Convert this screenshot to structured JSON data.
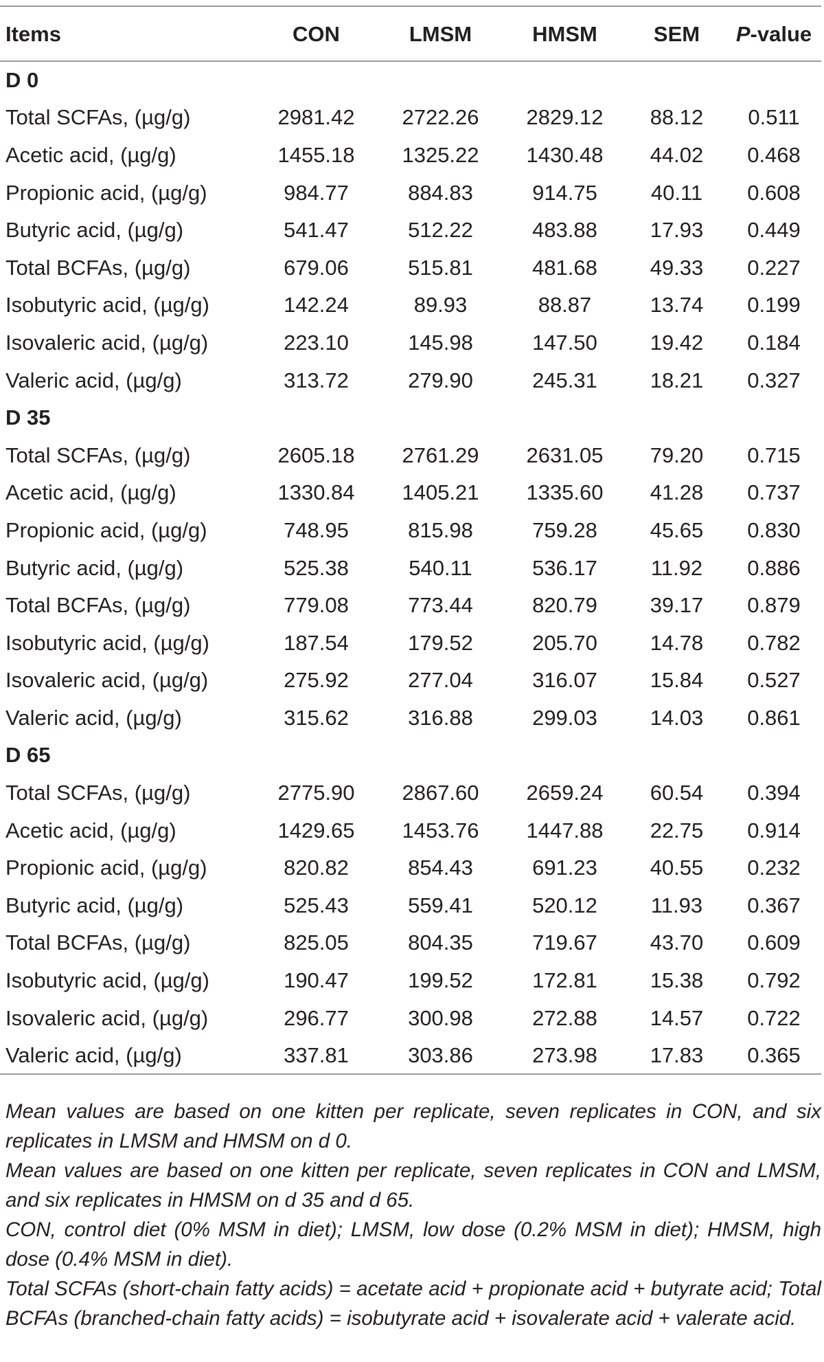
{
  "table": {
    "headers": {
      "items": "Items",
      "con": "CON",
      "lmsm": "LMSM",
      "hmsm": "HMSM",
      "sem": "SEM",
      "p_letter": "P",
      "p_suffix": "-value"
    },
    "groups": [
      {
        "label": "D 0",
        "rows": [
          {
            "item": "Total SCFAs, (µg/g)",
            "con": "2981.42",
            "lmsm": "2722.26",
            "hmsm": "2829.12",
            "sem": "88.12",
            "p": "0.511"
          },
          {
            "item": "Acetic acid, (µg/g)",
            "con": "1455.18",
            "lmsm": "1325.22",
            "hmsm": "1430.48",
            "sem": "44.02",
            "p": "0.468"
          },
          {
            "item": "Propionic acid, (µg/g)",
            "con": "984.77",
            "lmsm": "884.83",
            "hmsm": "914.75",
            "sem": "40.11",
            "p": "0.608"
          },
          {
            "item": "Butyric acid, (µg/g)",
            "con": "541.47",
            "lmsm": "512.22",
            "hmsm": "483.88",
            "sem": "17.93",
            "p": "0.449"
          },
          {
            "item": "Total BCFAs, (µg/g)",
            "con": "679.06",
            "lmsm": "515.81",
            "hmsm": "481.68",
            "sem": "49.33",
            "p": "0.227"
          },
          {
            "item": "Isobutyric acid, (µg/g)",
            "con": "142.24",
            "lmsm": "89.93",
            "hmsm": "88.87",
            "sem": "13.74",
            "p": "0.199"
          },
          {
            "item": "Isovaleric acid, (µg/g)",
            "con": "223.10",
            "lmsm": "145.98",
            "hmsm": "147.50",
            "sem": "19.42",
            "p": "0.184"
          },
          {
            "item": "Valeric acid, (µg/g)",
            "con": "313.72",
            "lmsm": "279.90",
            "hmsm": "245.31",
            "sem": "18.21",
            "p": "0.327"
          }
        ]
      },
      {
        "label": "D 35",
        "rows": [
          {
            "item": "Total SCFAs, (µg/g)",
            "con": "2605.18",
            "lmsm": "2761.29",
            "hmsm": "2631.05",
            "sem": "79.20",
            "p": "0.715"
          },
          {
            "item": "Acetic acid, (µg/g)",
            "con": "1330.84",
            "lmsm": "1405.21",
            "hmsm": "1335.60",
            "sem": "41.28",
            "p": "0.737"
          },
          {
            "item": "Propionic acid, (µg/g)",
            "con": "748.95",
            "lmsm": "815.98",
            "hmsm": "759.28",
            "sem": "45.65",
            "p": "0.830"
          },
          {
            "item": "Butyric acid, (µg/g)",
            "con": "525.38",
            "lmsm": "540.11",
            "hmsm": "536.17",
            "sem": "11.92",
            "p": "0.886"
          },
          {
            "item": "Total BCFAs, (µg/g)",
            "con": "779.08",
            "lmsm": "773.44",
            "hmsm": "820.79",
            "sem": "39.17",
            "p": "0.879"
          },
          {
            "item": "Isobutyric acid, (µg/g)",
            "con": "187.54",
            "lmsm": "179.52",
            "hmsm": "205.70",
            "sem": "14.78",
            "p": "0.782"
          },
          {
            "item": "Isovaleric acid, (µg/g)",
            "con": "275.92",
            "lmsm": "277.04",
            "hmsm": "316.07",
            "sem": "15.84",
            "p": "0.527"
          },
          {
            "item": "Valeric acid, (µg/g)",
            "con": "315.62",
            "lmsm": "316.88",
            "hmsm": "299.03",
            "sem": "14.03",
            "p": "0.861"
          }
        ]
      },
      {
        "label": "D 65",
        "rows": [
          {
            "item": "Total SCFAs, (µg/g)",
            "con": "2775.90",
            "lmsm": "2867.60",
            "hmsm": "2659.24",
            "sem": "60.54",
            "p": "0.394"
          },
          {
            "item": "Acetic acid, (µg/g)",
            "con": "1429.65",
            "lmsm": "1453.76",
            "hmsm": "1447.88",
            "sem": "22.75",
            "p": "0.914"
          },
          {
            "item": "Propionic acid, (µg/g)",
            "con": "820.82",
            "lmsm": "854.43",
            "hmsm": "691.23",
            "sem": "40.55",
            "p": "0.232"
          },
          {
            "item": "Butyric acid, (µg/g)",
            "con": "525.43",
            "lmsm": "559.41",
            "hmsm": "520.12",
            "sem": "11.93",
            "p": "0.367"
          },
          {
            "item": "Total BCFAs, (µg/g)",
            "con": "825.05",
            "lmsm": "804.35",
            "hmsm": "719.67",
            "sem": "43.70",
            "p": "0.609"
          },
          {
            "item": "Isobutyric acid, (µg/g)",
            "con": "190.47",
            "lmsm": "199.52",
            "hmsm": "172.81",
            "sem": "15.38",
            "p": "0.792"
          },
          {
            "item": "Isovaleric acid, (µg/g)",
            "con": "296.77",
            "lmsm": "300.98",
            "hmsm": "272.88",
            "sem": "14.57",
            "p": "0.722"
          },
          {
            "item": "Valeric acid, (µg/g)",
            "con": "337.81",
            "lmsm": "303.86",
            "hmsm": "273.98",
            "sem": "17.83",
            "p": "0.365"
          }
        ]
      }
    ]
  },
  "footnotes": [
    "Mean values are based on one kitten per replicate, seven replicates in CON, and six replicates in LMSM and HMSM on d 0.",
    "Mean values are based on one kitten per replicate, seven replicates in CON and LMSM, and six replicates in HMSM on d 35 and d 65.",
    "CON, control diet (0% MSM in diet); LMSM, low dose (0.2% MSM in diet); HMSM, high dose (0.4% MSM in diet).",
    "Total SCFAs (short-chain fatty acids) = acetate acid + propionate acid + butyrate acid; Total BCFAs (branched-chain fatty acids) = isobutyrate acid + isovalerate acid + valerate acid."
  ]
}
